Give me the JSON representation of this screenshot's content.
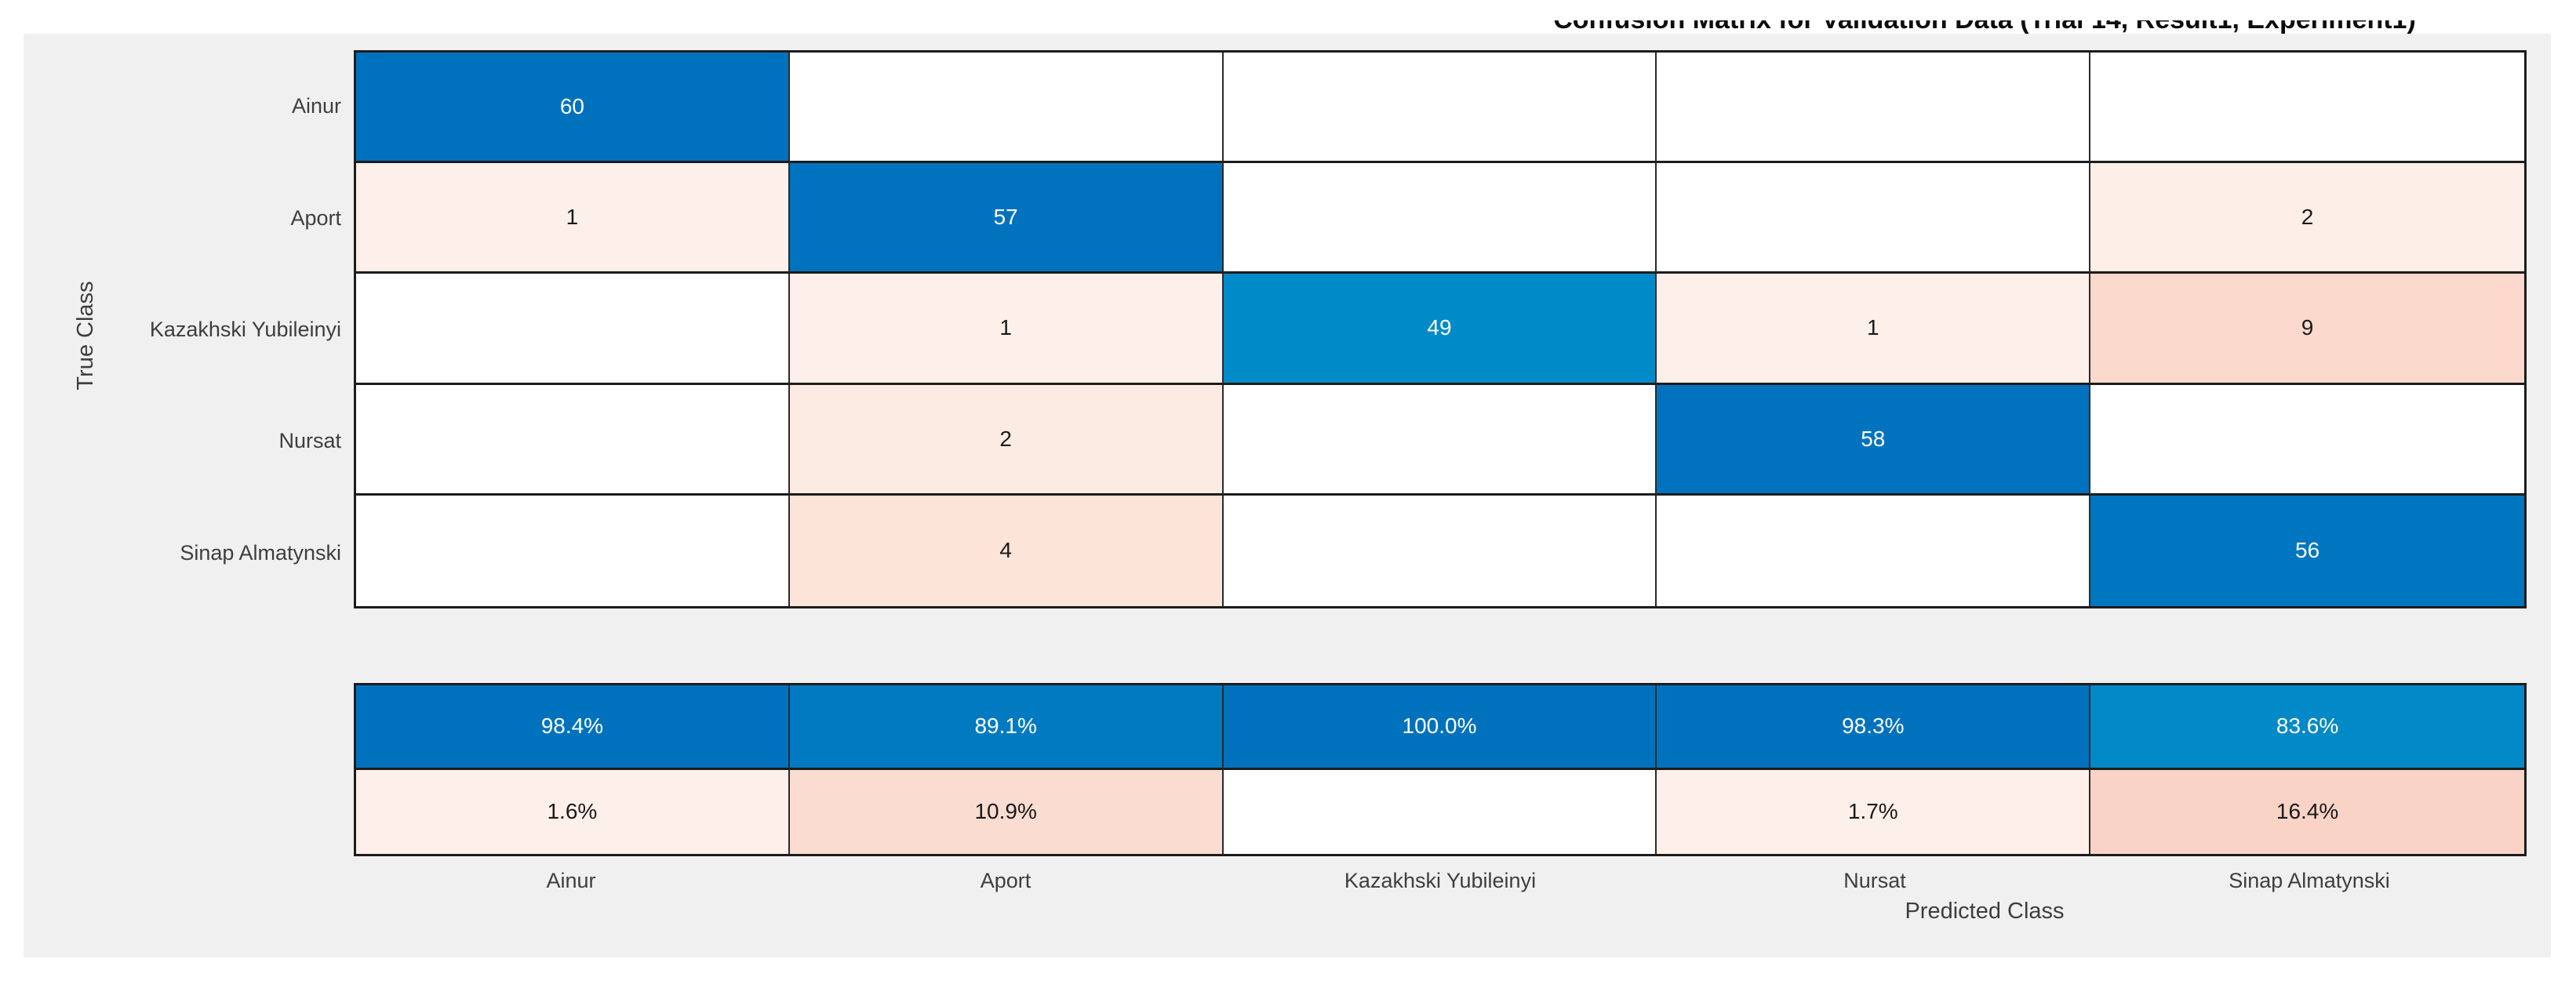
{
  "title": "Confusion Matrix for Validation Data (Trial 14, Result1, Experiment1)",
  "axes": {
    "x_label": "Predicted Class",
    "y_label": "True Class"
  },
  "colors": {
    "diagonal_blue": "#0072bd",
    "diagonal_blue_mid": "#018ac8",
    "diagonal_blue_light": "#0289c7",
    "offdiagonal_pale_pink": "#fdefe9",
    "offdiagonal_deep_pink": "#f9d3c5",
    "panel_background": "#f0f0f0",
    "grid_line": "#1c1c1c",
    "label_text": "#3e3e3e"
  },
  "chart_data": {
    "type": "heatmap",
    "title": "Confusion Matrix for Validation Data (Trial 14, Result1, Experiment1)",
    "xlabel": "Predicted Class",
    "ylabel": "True Class",
    "legend_position": "none",
    "grid": true,
    "x_categories": [
      "Ainur",
      "Aport",
      "Kazakhski Yubileinyi",
      "Nursat",
      "Sinap Almatynski"
    ],
    "y_categories": [
      "Ainur",
      "Aport",
      "Kazakhski Yubileinyi",
      "Nursat",
      "Sinap Almatynski"
    ],
    "matrix": [
      [
        60,
        null,
        null,
        null,
        null
      ],
      [
        1,
        57,
        null,
        null,
        2
      ],
      [
        null,
        1,
        49,
        1,
        9
      ],
      [
        null,
        2,
        null,
        58,
        null
      ],
      [
        null,
        4,
        null,
        null,
        56
      ]
    ],
    "column_summary": {
      "correct_pct": [
        "98.4%",
        "89.1%",
        "100.0%",
        "98.3%",
        "83.6%"
      ],
      "incorrect_pct": [
        "1.6%",
        "10.9%",
        "",
        "1.7%",
        "16.4%"
      ]
    },
    "cells": [
      [
        {
          "v": "60",
          "bg": "#0072bd",
          "fg": "#ffffff"
        },
        null,
        null,
        null,
        null
      ],
      [
        {
          "v": "1",
          "bg": "#fdefe9",
          "fg": "#1a1a1a"
        },
        {
          "v": "57",
          "bg": "#0173be",
          "fg": "#ffffff"
        },
        null,
        null,
        {
          "v": "2",
          "bg": "#fdeee8",
          "fg": "#1a1a1a"
        }
      ],
      [
        null,
        {
          "v": "1",
          "bg": "#fdefe9",
          "fg": "#1a1a1a"
        },
        {
          "v": "49",
          "bg": "#018ac8",
          "fg": "#ffffff"
        },
        {
          "v": "1",
          "bg": "#fdefe9",
          "fg": "#1a1a1a"
        },
        {
          "v": "9",
          "bg": "#fbdacd",
          "fg": "#1a1a1a"
        }
      ],
      [
        null,
        {
          "v": "2",
          "bg": "#fcebe3",
          "fg": "#1a1a1a"
        },
        null,
        {
          "v": "58",
          "bg": "#0173be",
          "fg": "#ffffff"
        },
        null
      ],
      [
        null,
        {
          "v": "4",
          "bg": "#fce4d9",
          "fg": "#1a1a1a"
        },
        null,
        null,
        {
          "v": "56",
          "bg": "#0176c0",
          "fg": "#ffffff"
        }
      ]
    ],
    "summary_cells": [
      [
        {
          "v": "98.4%",
          "bg": "#0072bd",
          "fg": "#ffffff"
        },
        {
          "v": "89.1%",
          "bg": "#017ac2",
          "fg": "#ffffff"
        },
        {
          "v": "100.0%",
          "bg": "#0072bd",
          "fg": "#ffffff"
        },
        {
          "v": "98.3%",
          "bg": "#0072bd",
          "fg": "#ffffff"
        },
        {
          "v": "83.6%",
          "bg": "#0289c7",
          "fg": "#ffffff"
        }
      ],
      [
        {
          "v": "1.6%",
          "bg": "#fdefe9",
          "fg": "#1a1a1a"
        },
        {
          "v": "10.9%",
          "bg": "#fadcd0",
          "fg": "#1a1a1a"
        },
        null,
        {
          "v": "1.7%",
          "bg": "#fdefe9",
          "fg": "#1a1a1a"
        },
        {
          "v": "16.4%",
          "bg": "#f9d3c5",
          "fg": "#1a1a1a"
        }
      ]
    ],
    "row_label_centers_y": [
      135,
      278,
      420,
      562,
      705
    ]
  }
}
